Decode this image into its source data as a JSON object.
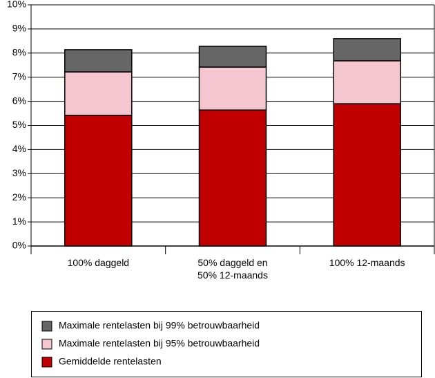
{
  "chart_data": {
    "type": "stacked-bar",
    "categories": [
      "100% daggeld",
      "50% daggeld en\n50% 12-maands",
      "100% 12-maands"
    ],
    "series": [
      {
        "name": "Gemiddelde rentelasten",
        "color": "#c00000",
        "values": [
          5.42,
          5.64,
          5.9
        ]
      },
      {
        "name": "Maximale rentelasten bij 95% betrouwbaarheid",
        "color": "#f4c6d0",
        "values": [
          1.8,
          1.78,
          1.78
        ]
      },
      {
        "name": "Maximale rentelasten bij 99% betrouwbaarheid",
        "color": "#666666",
        "values": [
          0.92,
          0.86,
          0.92
        ]
      }
    ],
    "ylim": [
      0,
      10
    ],
    "yticks": [
      {
        "value": 0,
        "label": "0%"
      },
      {
        "value": 1,
        "label": "1%"
      },
      {
        "value": 2,
        "label": "2%"
      },
      {
        "value": 3,
        "label": "3%"
      },
      {
        "value": 4,
        "label": "4%"
      },
      {
        "value": 5,
        "label": "5%"
      },
      {
        "value": 6,
        "label": "6%"
      },
      {
        "value": 7,
        "label": "7%"
      },
      {
        "value": 8,
        "label": "8%"
      },
      {
        "value": 9,
        "label": "9%"
      },
      {
        "value": 10,
        "label": "10%"
      }
    ],
    "grid": true
  }
}
